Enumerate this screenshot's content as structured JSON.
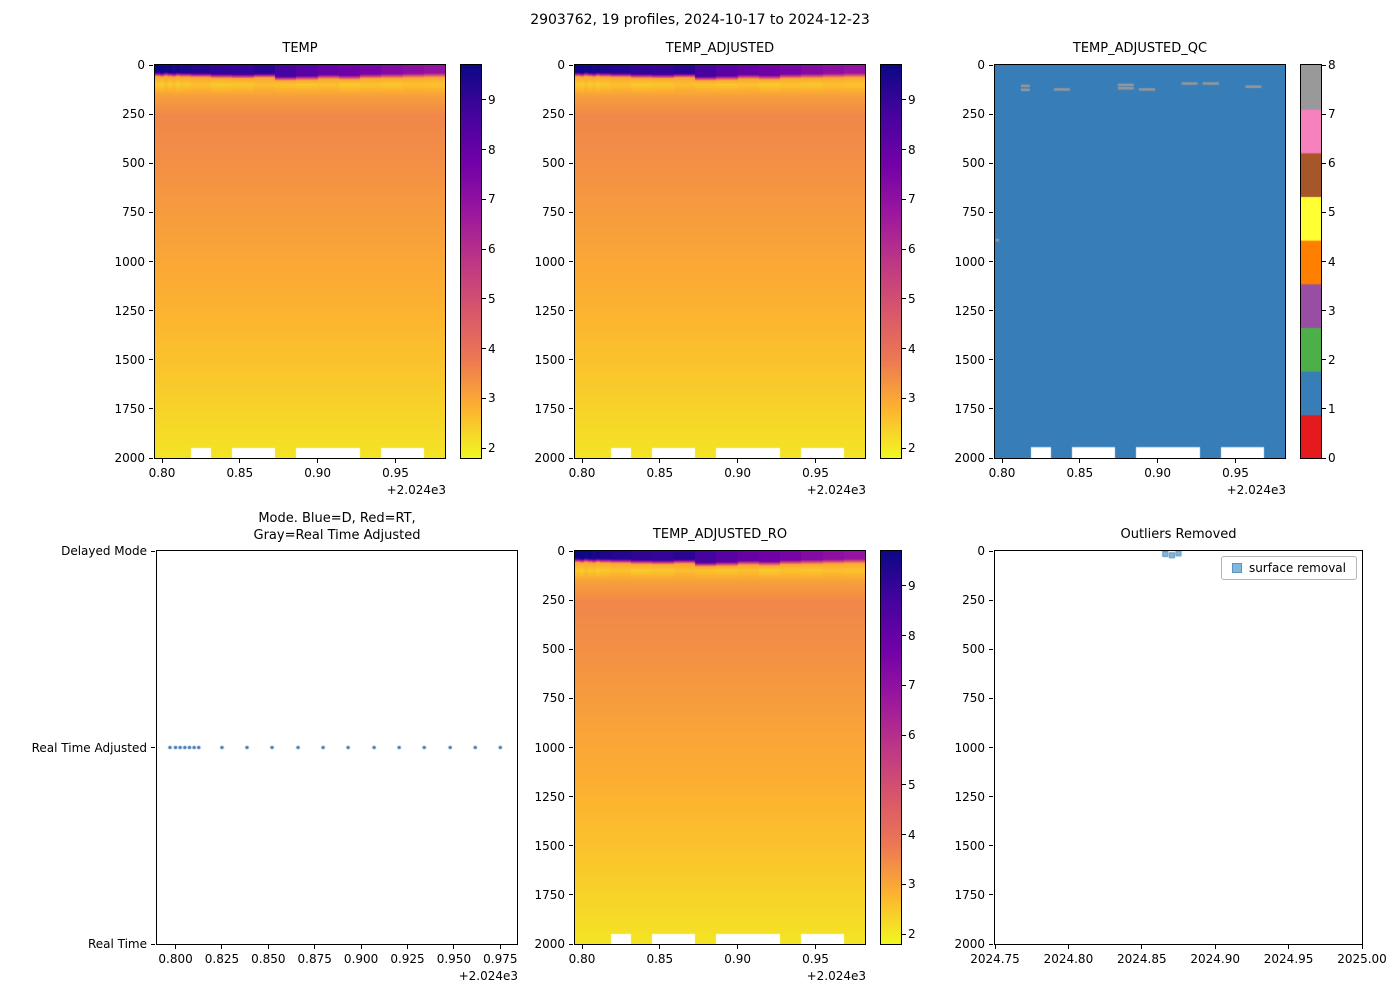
{
  "figure_title": "2903762, 19 profiles, 2024-10-17 to 2024-12-23",
  "colors": {
    "qc_palette": [
      "#e41a1c",
      "#377eb8",
      "#4daf4a",
      "#984ea3",
      "#ff7f00",
      "#ffff33",
      "#a65628",
      "#f781bf",
      "#999999"
    ],
    "mode_dot": "#3d7ab5",
    "outlier_marker": "#7fb8dc",
    "outlier_marker_edge": "#5c93bd",
    "heat_colormap": "plasma reversed (yellow=cold, dark navy=warm)"
  },
  "chart_data": [
    {
      "id": "temp",
      "type": "heatmap",
      "title": "TEMP",
      "xlim": [
        0.7955,
        0.9818
      ],
      "ylim": [
        0,
        2000
      ],
      "x_ticks": [
        {
          "v": 0.8,
          "label": "0.80"
        },
        {
          "v": 0.85,
          "label": "0.85"
        },
        {
          "v": 0.9,
          "label": "0.90"
        },
        {
          "v": 0.95,
          "label": "0.95"
        }
      ],
      "x_offset_label": "+2.024e3",
      "y_ticks": [
        0,
        250,
        500,
        750,
        1000,
        1250,
        1500,
        1750,
        2000
      ],
      "colorbar": {
        "vmin": 1.8,
        "vmax": 9.7,
        "ticks": [
          2,
          3,
          4,
          5,
          6,
          7,
          8,
          9
        ]
      },
      "profiles": {
        "count": 19,
        "x": [
          0.797,
          0.8,
          0.8025,
          0.805,
          0.8075,
          0.81,
          0.8125,
          0.825,
          0.8385,
          0.852,
          0.866,
          0.8795,
          0.893,
          0.907,
          0.9205,
          0.934,
          0.948,
          0.9615,
          0.975
        ],
        "surface_temp_c": [
          9.7,
          9.8,
          9.6,
          9.7,
          9.5,
          9.6,
          9.4,
          9.3,
          9.1,
          9.0,
          9.2,
          8.7,
          8.3,
          8.0,
          7.8,
          7.6,
          7.3,
          7.1,
          6.9
        ],
        "mixed_layer_depth_m": [
          34,
          36,
          33,
          35,
          37,
          34,
          36,
          38,
          42,
          44,
          40,
          55,
          52,
          46,
          50,
          44,
          42,
          40,
          38
        ],
        "cold_layer_temp_c": [
          2.5,
          2.4,
          2.6,
          2.45,
          2.55,
          2.4,
          2.5,
          2.6,
          2.45,
          2.5,
          2.65,
          2.55,
          2.5,
          2.6,
          2.45,
          2.55,
          2.5,
          2.6,
          2.55
        ],
        "cold_layer_depth_m": 97,
        "thermocline_top_temp_c": 3.0,
        "max_depth_m": [
          2000,
          2000,
          2000,
          2000,
          2000,
          2000,
          2000,
          1945,
          2000,
          1945,
          1945,
          2000,
          1945,
          1945,
          1945,
          2000,
          1945,
          1945,
          2000
        ],
        "deep_profile": {
          "depths_m": [
            150,
            260,
            500,
            800,
            1200,
            1600,
            2000
          ],
          "temps_c": [
            3.1,
            3.55,
            3.4,
            3.15,
            2.85,
            2.5,
            2.1
          ]
        }
      }
    },
    {
      "id": "temp_adjusted",
      "type": "heatmap",
      "title": "TEMP_ADJUSTED",
      "data_same_as": "temp",
      "xlim": [
        0.7955,
        0.9818
      ],
      "ylim": [
        0,
        2000
      ],
      "x_ticks": [
        {
          "v": 0.8,
          "label": "0.80"
        },
        {
          "v": 0.85,
          "label": "0.85"
        },
        {
          "v": 0.9,
          "label": "0.90"
        },
        {
          "v": 0.95,
          "label": "0.95"
        }
      ],
      "x_offset_label": "+2.024e3",
      "y_ticks": [
        0,
        250,
        500,
        750,
        1000,
        1250,
        1500,
        1750,
        2000
      ],
      "colorbar": {
        "vmin": 1.8,
        "vmax": 9.7,
        "ticks": [
          2,
          3,
          4,
          5,
          6,
          7,
          8,
          9
        ]
      }
    },
    {
      "id": "temp_adjusted_qc",
      "type": "heatmap",
      "title": "TEMP_ADJUSTED_QC",
      "xlim": [
        0.7955,
        0.9818
      ],
      "ylim": [
        0,
        2000
      ],
      "x_ticks": [
        {
          "v": 0.8,
          "label": "0.80"
        },
        {
          "v": 0.85,
          "label": "0.85"
        },
        {
          "v": 0.9,
          "label": "0.90"
        },
        {
          "v": 0.95,
          "label": "0.95"
        }
      ],
      "x_offset_label": "+2.024e3",
      "y_ticks": [
        0,
        250,
        500,
        750,
        1000,
        1250,
        1500,
        1750,
        2000
      ],
      "colorbar": {
        "vmin": 0,
        "vmax": 8,
        "ticks": [
          0,
          1,
          2,
          3,
          4,
          5,
          6,
          7,
          8
        ],
        "discrete": true,
        "n_bands": 9
      },
      "qc": {
        "dominant_flag": 1,
        "marks": [
          {
            "profile": 0,
            "depth_top": 885,
            "depth_bottom": 898,
            "flag": 8
          },
          {
            "profile": 6,
            "depth_top": 100,
            "depth_bottom": 112,
            "flag": 8
          },
          {
            "profile": 6,
            "depth_top": 120,
            "depth_bottom": 132,
            "flag": 8
          },
          {
            "profile": 8,
            "depth_top": 118,
            "depth_bottom": 128,
            "flag": 8
          },
          {
            "profile": 11,
            "depth_top": 95,
            "depth_bottom": 105,
            "flag": 8
          },
          {
            "profile": 11,
            "depth_top": 112,
            "depth_bottom": 122,
            "flag": 8
          },
          {
            "profile": 12,
            "depth_top": 118,
            "depth_bottom": 128,
            "flag": 8
          },
          {
            "profile": 14,
            "depth_top": 88,
            "depth_bottom": 98,
            "flag": 8
          },
          {
            "profile": 15,
            "depth_top": 88,
            "depth_bottom": 98,
            "flag": 8
          },
          {
            "profile": 17,
            "depth_top": 104,
            "depth_bottom": 114,
            "flag": 8
          }
        ]
      }
    },
    {
      "id": "mode",
      "type": "scatter",
      "title": "Mode. Blue=D, Red=RT,\nGray=Real Time Adjusted",
      "xlim": [
        0.79,
        0.984
      ],
      "x_ticks": [
        {
          "v": 0.8,
          "label": "0.800"
        },
        {
          "v": 0.825,
          "label": "0.825"
        },
        {
          "v": 0.85,
          "label": "0.850"
        },
        {
          "v": 0.875,
          "label": "0.875"
        },
        {
          "v": 0.9,
          "label": "0.900"
        },
        {
          "v": 0.925,
          "label": "0.925"
        },
        {
          "v": 0.95,
          "label": "0.950"
        },
        {
          "v": 0.975,
          "label": "0.975"
        }
      ],
      "x_offset_label": "+2.024e3",
      "y_categories": [
        "Delayed Mode",
        "Real Time Adjusted",
        "Real Time"
      ],
      "point_mode": "Real Time Adjusted",
      "points_x": [
        0.797,
        0.8,
        0.8025,
        0.805,
        0.8075,
        0.81,
        0.8125,
        0.825,
        0.8385,
        0.852,
        0.866,
        0.8795,
        0.893,
        0.907,
        0.9205,
        0.934,
        0.948,
        0.9615,
        0.975
      ]
    },
    {
      "id": "temp_adjusted_ro",
      "type": "heatmap",
      "title": "TEMP_ADJUSTED_RO",
      "data_same_as": "temp",
      "xlim": [
        0.7955,
        0.9818
      ],
      "ylim": [
        0,
        2000
      ],
      "x_ticks": [
        {
          "v": 0.8,
          "label": "0.80"
        },
        {
          "v": 0.85,
          "label": "0.85"
        },
        {
          "v": 0.9,
          "label": "0.90"
        },
        {
          "v": 0.95,
          "label": "0.95"
        }
      ],
      "x_offset_label": "+2.024e3",
      "y_ticks": [
        0,
        250,
        500,
        750,
        1000,
        1250,
        1500,
        1750,
        2000
      ],
      "colorbar": {
        "vmin": 1.8,
        "vmax": 9.7,
        "ticks": [
          2,
          3,
          4,
          5,
          6,
          7,
          8,
          9
        ]
      }
    },
    {
      "id": "outliers",
      "type": "scatter",
      "title": "Outliers Removed",
      "xlim": [
        2024.75,
        2025.0
      ],
      "ylim": [
        0,
        2000
      ],
      "x_ticks": [
        {
          "v": 2024.75,
          "label": "2024.75"
        },
        {
          "v": 2024.8,
          "label": "2024.80"
        },
        {
          "v": 2024.85,
          "label": "2024.85"
        },
        {
          "v": 2024.9,
          "label": "2024.90"
        },
        {
          "v": 2024.95,
          "label": "2024.95"
        },
        {
          "v": 2025.0,
          "label": "2025.00"
        }
      ],
      "y_ticks": [
        0,
        250,
        500,
        750,
        1000,
        1250,
        1500,
        1750,
        2000
      ],
      "legend": [
        {
          "label": "surface removal",
          "marker": "square"
        }
      ],
      "points": [
        {
          "x": 2024.866,
          "depth": 15
        },
        {
          "x": 2024.8705,
          "depth": 22
        },
        {
          "x": 2024.875,
          "depth": 12
        }
      ]
    }
  ]
}
